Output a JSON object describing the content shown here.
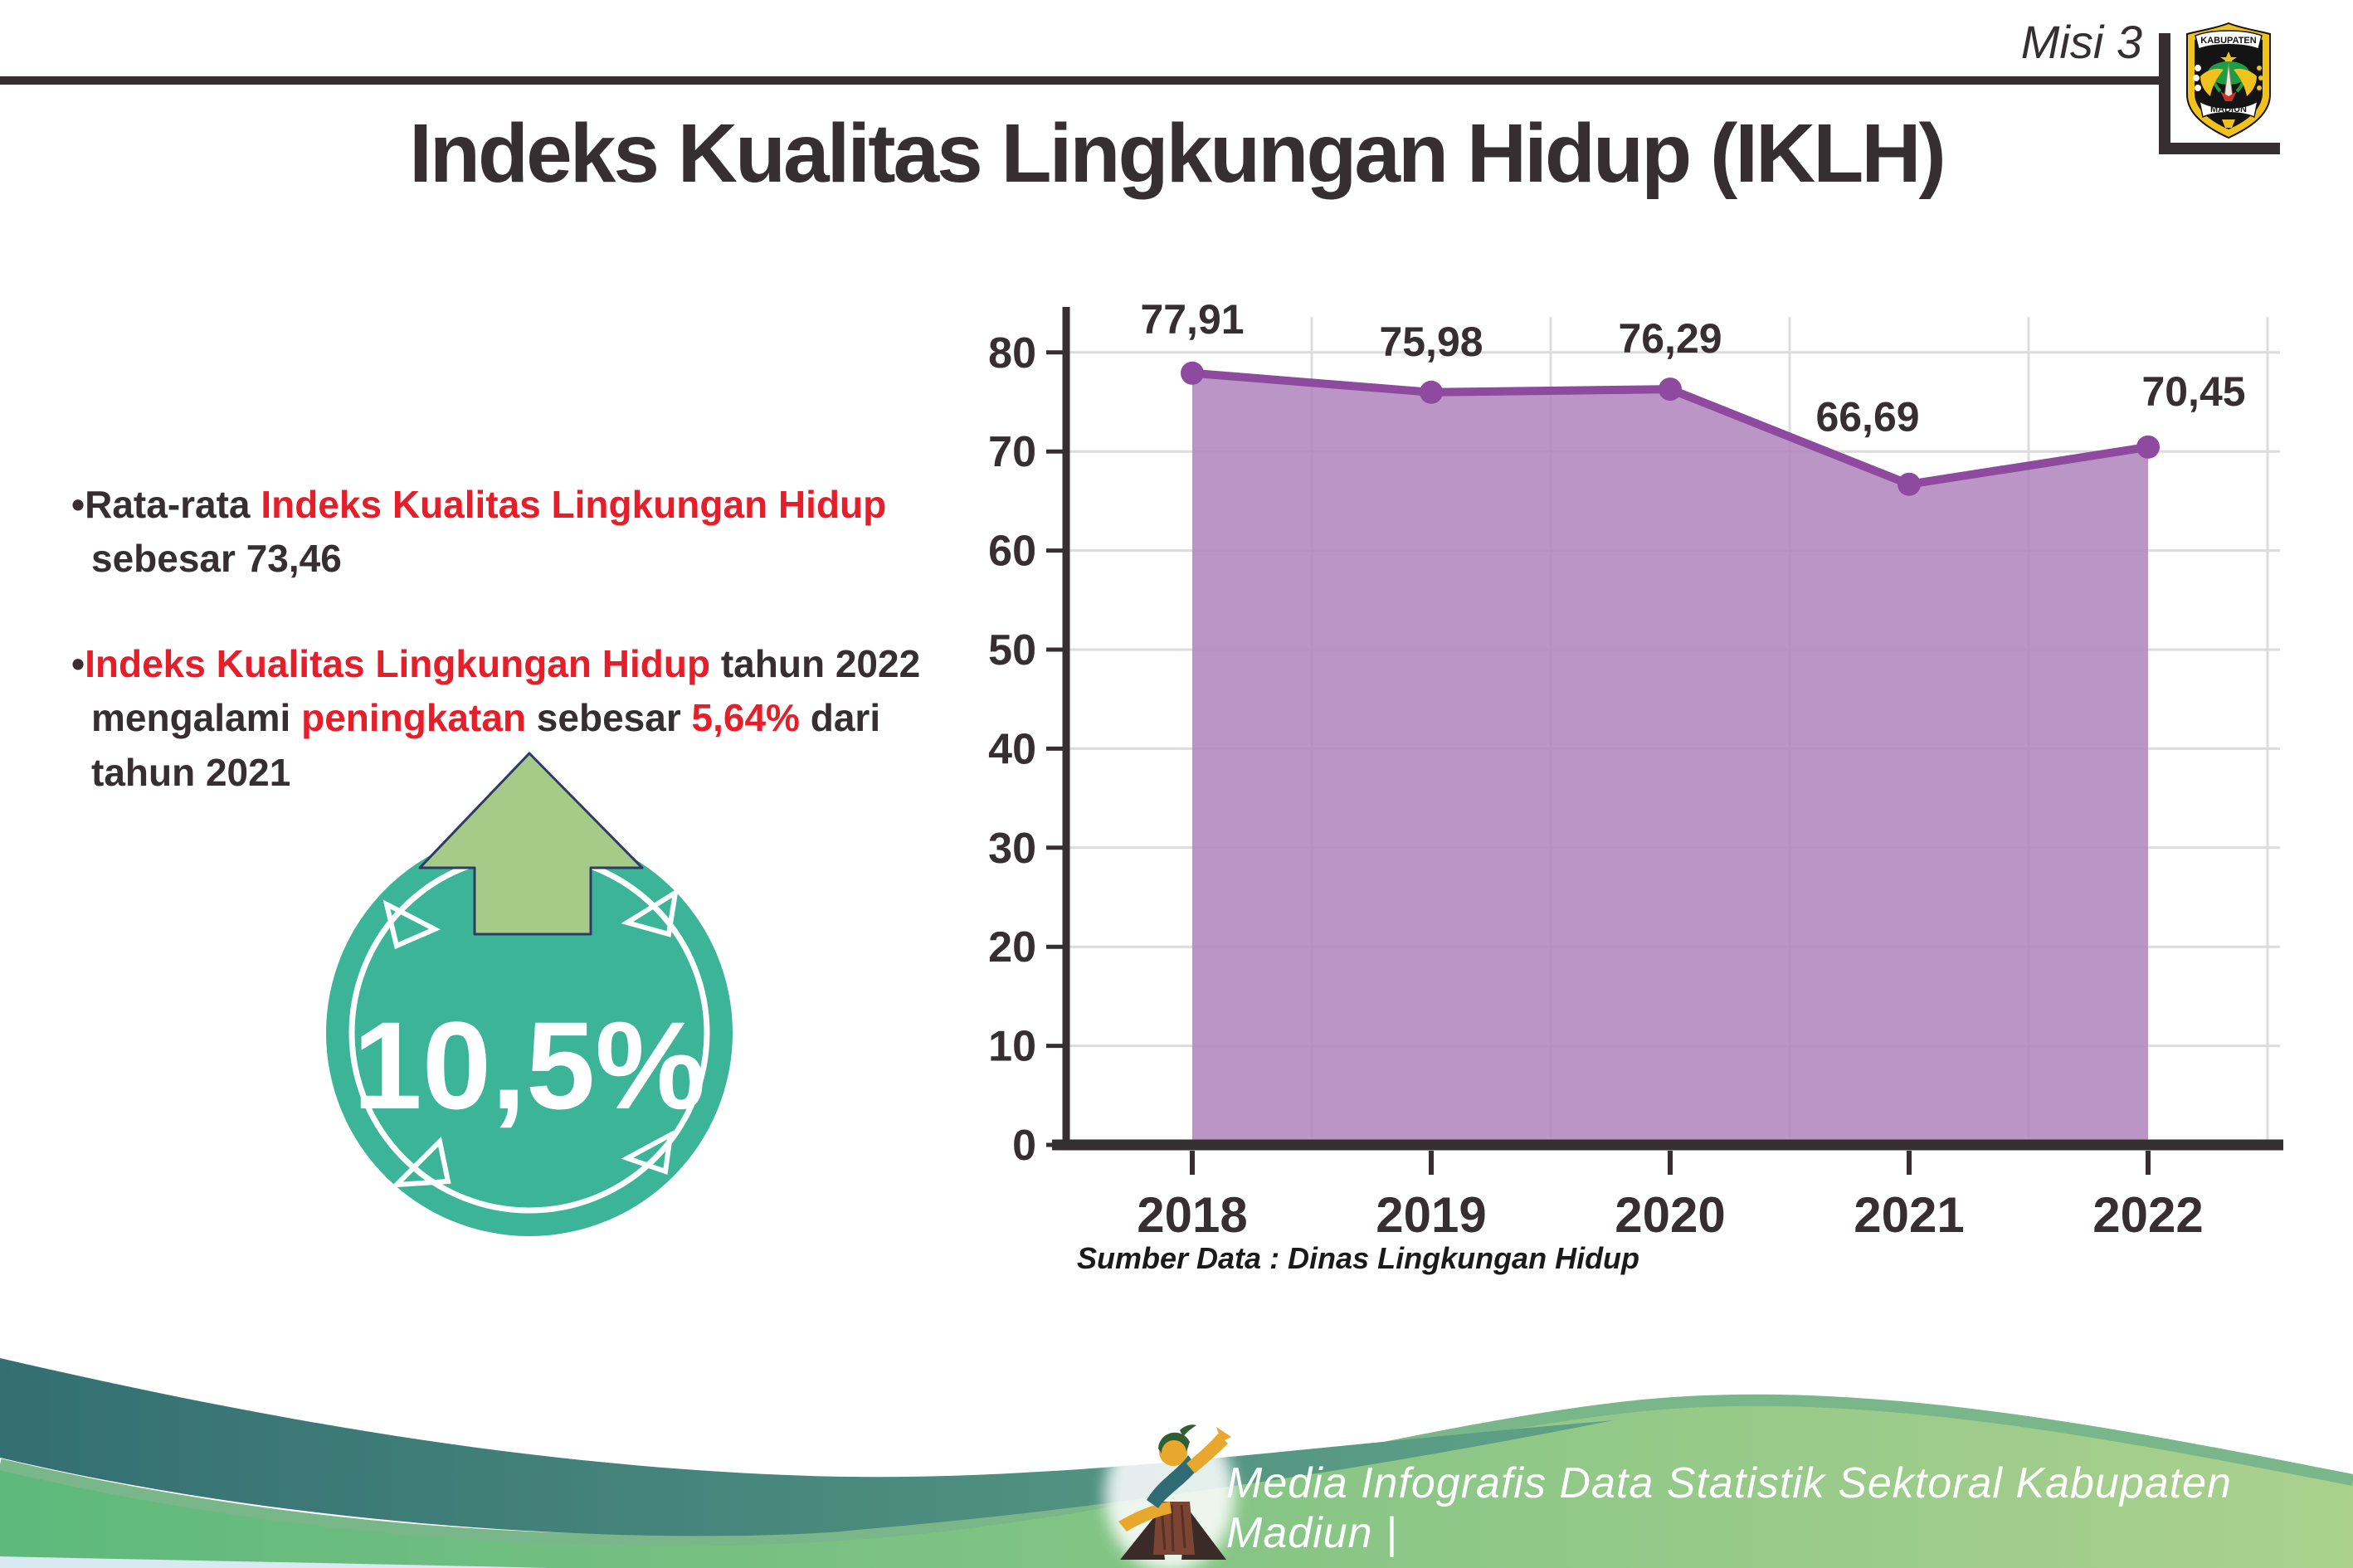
{
  "header": {
    "misi_label": "Misi 3",
    "logo_top_text": "KABUPATEN",
    "logo_bottom_text": "MADIUN"
  },
  "title": "Indeks Kualitas Lingkungan Hidup (IKLH)",
  "bullets": [
    {
      "lines": [
        [
          {
            "color": "dark",
            "text": "Rata-rata "
          },
          {
            "color": "red",
            "text": "Indeks Kualitas Lingkungan Hidup"
          }
        ],
        [
          {
            "color": "dark",
            "text": "sebesar 73,46"
          }
        ]
      ]
    },
    {
      "lines": [
        [
          {
            "color": "red",
            "text": "Indeks Kualitas Lingkungan Hidup"
          },
          {
            "color": "dark",
            "text": " tahun 2022"
          }
        ],
        [
          {
            "color": "dark",
            "text": "mengalami "
          },
          {
            "color": "red",
            "text": "peningkatan"
          },
          {
            "color": "dark",
            "text": " sebesar "
          },
          {
            "color": "red",
            "text": "5,64%"
          },
          {
            "color": "dark",
            "text": " dari"
          }
        ],
        [
          {
            "color": "dark",
            "text": "tahun 2021"
          }
        ]
      ]
    }
  ],
  "badge": {
    "value": "10,5%",
    "icon": "arrow-up"
  },
  "chart_data": {
    "type": "area",
    "categories": [
      "2018",
      "2019",
      "2020",
      "2021",
      "2022"
    ],
    "values": [
      77.91,
      75.98,
      76.29,
      66.69,
      70.45
    ],
    "value_labels": [
      "77,91",
      "75,98",
      "76,29",
      "66,69",
      "70,45"
    ],
    "title": "",
    "xlabel": "",
    "ylabel": "",
    "ylim": [
      0,
      80
    ],
    "yticks": [
      0,
      10,
      20,
      30,
      40,
      50,
      60,
      70,
      80
    ],
    "grid": true,
    "legend": false,
    "line_color": "#8e4a9e",
    "fill_color": "#b286be",
    "label_color": "#362f31"
  },
  "source_note": "Sumber Data : Dinas Lingkungan Hidup",
  "footer": {
    "text": "Media Infografis Data Statistik Sektoral Kabupaten Madiun |"
  },
  "colors": {
    "dark": "#362f31",
    "red": "#e51e2a",
    "badge_teal": "#3bb497",
    "arrow_green": "#a6ca88",
    "arrow_outline": "#2d3b66",
    "wave_teal_left": "#336f72",
    "wave_teal_right": "#5fa287",
    "wave_green_left": "#5eb97c",
    "wave_green_right": "#abd08e",
    "wave_green_edge": "#79b689",
    "grid": "#dcdcdc"
  }
}
